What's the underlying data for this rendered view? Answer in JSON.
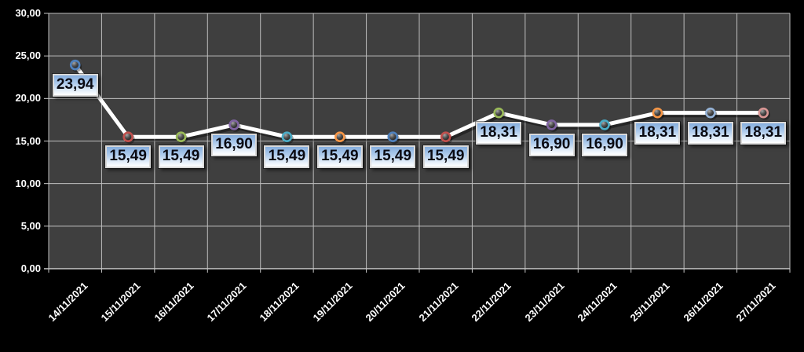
{
  "chart_data": {
    "type": "line",
    "title": "",
    "xlabel": "",
    "ylabel": "",
    "categories": [
      "14/11/2021",
      "15/11/2021",
      "16/11/2021",
      "17/11/2021",
      "18/11/2021",
      "19/11/2021",
      "20/11/2021",
      "21/11/2021",
      "22/11/2021",
      "23/11/2021",
      "24/11/2021",
      "25/11/2021",
      "26/11/2021",
      "27/11/2021"
    ],
    "series": [
      {
        "name": "",
        "values": [
          23.94,
          15.49,
          15.49,
          16.9,
          15.49,
          15.49,
          15.49,
          15.49,
          18.31,
          16.9,
          16.9,
          18.31,
          18.31,
          18.31
        ]
      }
    ],
    "data_labels": [
      "23,94",
      "15,49",
      "15,49",
      "16,90",
      "15,49",
      "15,49",
      "15,49",
      "15,49",
      "18,31",
      "16,90",
      "16,90",
      "18,31",
      "18,31",
      "18,31"
    ],
    "ylim": [
      0,
      30
    ],
    "y_tick_step": 5,
    "y_tick_labels": [
      "0,00",
      "5,00",
      "10,00",
      "15,00",
      "20,00",
      "25,00",
      "30,00"
    ],
    "grid": true,
    "legend": "none",
    "colors": {
      "outer_background": "#000000",
      "plot_background": "#3F3F3F",
      "gridline": "#BEBEBE",
      "axis_line": "#C8C8C8",
      "line": "#FFFFFF",
      "line_shadow": "rgba(0,0,0,0.40)",
      "tick": "#C8C8C8",
      "axis_text": "#FFFFFF",
      "label_box_border": "#D9D9D9",
      "label_text": "#0A0A12"
    },
    "point_colors": [
      "#4F81BD",
      "#C0504D",
      "#9BBB59",
      "#8064A2",
      "#4BACC6",
      "#F79646",
      "#4F81BD",
      "#C0504D",
      "#9BBB59",
      "#8064A2",
      "#4BACC6",
      "#F79646",
      "#95B3D7",
      "#D99694"
    ]
  }
}
